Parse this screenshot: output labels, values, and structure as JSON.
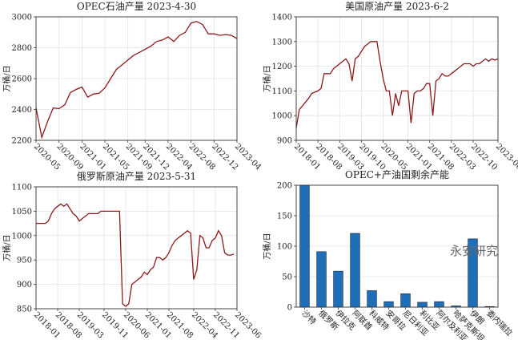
{
  "chart_data": [
    {
      "type": "line",
      "title": "OPEC石油产量 2023-4-30",
      "ylabel": "万桶/日",
      "color": "#8b1a1a",
      "grid": true,
      "x": [
        "2020-05",
        "2020-06",
        "2020-07",
        "2020-08",
        "2020-09",
        "2020-10",
        "2020-11",
        "2020-12",
        "2021-01",
        "2021-02",
        "2021-03",
        "2021-04",
        "2021-05",
        "2021-06",
        "2021-07",
        "2021-08",
        "2021-09",
        "2021-10",
        "2021-11",
        "2021-12",
        "2022-01",
        "2022-02",
        "2022-03",
        "2022-04",
        "2022-05",
        "2022-06",
        "2022-07",
        "2022-08",
        "2022-09",
        "2022-10",
        "2022-11",
        "2022-12",
        "2023-01",
        "2023-02",
        "2023-03",
        "2023-04"
      ],
      "values": [
        2410,
        2220,
        2320,
        2410,
        2405,
        2430,
        2510,
        2530,
        2545,
        2480,
        2500,
        2505,
        2540,
        2600,
        2660,
        2690,
        2720,
        2750,
        2770,
        2790,
        2810,
        2840,
        2850,
        2870,
        2840,
        2880,
        2900,
        2960,
        2970,
        2950,
        2890,
        2890,
        2880,
        2885,
        2880,
        2860
      ],
      "xlim": [
        "2020-05",
        "2023-04"
      ],
      "xticks": [
        "2020-05",
        "2020-09",
        "2021-01",
        "2021-05",
        "2021-09",
        "2021-12",
        "2022-04",
        "2022-08",
        "2022-12",
        "2023-04"
      ],
      "ylim": [
        2200,
        3000
      ],
      "yticks": [
        2200,
        2400,
        2600,
        2800,
        3000
      ]
    },
    {
      "type": "line",
      "title": "美国原油产量 2023-6-2",
      "ylabel": "万桶/日",
      "color": "#8b1a1a",
      "grid": true,
      "x": [
        "2018-01",
        "2018-02",
        "2018-03",
        "2018-04",
        "2018-05",
        "2018-06",
        "2018-07",
        "2018-08",
        "2018-09",
        "2018-10",
        "2018-11",
        "2018-12",
        "2019-01",
        "2019-02",
        "2019-03",
        "2019-04",
        "2019-05",
        "2019-06",
        "2019-07",
        "2019-08",
        "2019-09",
        "2019-10",
        "2019-11",
        "2019-12",
        "2020-01",
        "2020-02",
        "2020-03",
        "2020-04",
        "2020-05",
        "2020-06",
        "2020-07",
        "2020-08",
        "2020-09",
        "2020-10",
        "2020-11",
        "2020-12",
        "2021-01",
        "2021-02",
        "2021-03",
        "2021-04",
        "2021-05",
        "2021-06",
        "2021-07",
        "2021-08",
        "2021-09",
        "2021-10",
        "2021-11",
        "2021-12",
        "2022-01",
        "2022-02",
        "2022-03",
        "2022-04",
        "2022-05",
        "2022-06",
        "2022-07",
        "2022-08",
        "2022-09",
        "2022-10",
        "2022-11",
        "2022-12",
        "2023-01",
        "2023-02",
        "2023-03",
        "2023-04",
        "2023-05",
        "2023-06"
      ],
      "values": [
        950,
        1025,
        1040,
        1055,
        1070,
        1090,
        1095,
        1100,
        1110,
        1170,
        1170,
        1170,
        1190,
        1200,
        1210,
        1220,
        1230,
        1210,
        1140,
        1230,
        1240,
        1260,
        1280,
        1290,
        1300,
        1300,
        1300,
        1220,
        1150,
        1100,
        1100,
        1000,
        1090,
        1040,
        1100,
        1100,
        1100,
        970,
        1090,
        1100,
        1100,
        1110,
        1130,
        1130,
        1000,
        1140,
        1150,
        1170,
        1160,
        1160,
        1170,
        1180,
        1190,
        1200,
        1210,
        1210,
        1210,
        1200,
        1210,
        1210,
        1220,
        1230,
        1220,
        1230,
        1225,
        1230
      ],
      "xlim": [
        "2018-01",
        "2023-06"
      ],
      "xticks": [
        "2018-01",
        "2018-08",
        "2019-03",
        "2019-10",
        "2020-05",
        "2021-01",
        "2021-08",
        "2022-03",
        "2022-10",
        "2023-06"
      ],
      "ylim": [
        900,
        1400
      ],
      "yticks": [
        900,
        1000,
        1100,
        1200,
        1300,
        1400
      ]
    },
    {
      "type": "line",
      "title": "俄罗斯原油产量 2023-5-31",
      "ylabel": "万桶/日",
      "color": "#8b1a1a",
      "grid": true,
      "x": [
        "2018-01",
        "2018-02",
        "2018-03",
        "2018-04",
        "2018-05",
        "2018-06",
        "2018-07",
        "2018-08",
        "2018-09",
        "2018-10",
        "2018-11",
        "2018-12",
        "2019-01",
        "2019-02",
        "2019-03",
        "2019-04",
        "2019-05",
        "2019-06",
        "2019-07",
        "2019-08",
        "2019-09",
        "2019-10",
        "2019-11",
        "2019-12",
        "2020-01",
        "2020-02",
        "2020-03",
        "2020-04",
        "2020-05",
        "2020-06",
        "2020-07",
        "2020-08",
        "2020-09",
        "2020-10",
        "2020-11",
        "2020-12",
        "2021-01",
        "2021-02",
        "2021-03",
        "2021-04",
        "2021-05",
        "2021-06",
        "2021-07",
        "2021-08",
        "2021-09",
        "2021-10",
        "2021-11",
        "2021-12",
        "2022-01",
        "2022-02",
        "2022-03",
        "2022-04",
        "2022-05",
        "2022-06",
        "2022-07",
        "2022-08",
        "2022-09",
        "2022-10",
        "2022-11",
        "2022-12",
        "2023-01",
        "2023-02",
        "2023-03",
        "2023-04",
        "2023-05"
      ],
      "values": [
        1025,
        1025,
        1025,
        1025,
        1030,
        1045,
        1055,
        1060,
        1065,
        1060,
        1065,
        1055,
        1045,
        1040,
        1030,
        1035,
        1040,
        1045,
        1045,
        1045,
        1045,
        1050,
        1050,
        1050,
        1050,
        1050,
        1050,
        1050,
        860,
        855,
        860,
        900,
        905,
        910,
        915,
        925,
        920,
        930,
        935,
        955,
        955,
        950,
        955,
        965,
        980,
        990,
        995,
        1000,
        1005,
        1010,
        1005,
        910,
        930,
        1000,
        995,
        975,
        975,
        990,
        995,
        1010,
        1000,
        965,
        960,
        960,
        962
      ],
      "xlim": [
        "2018-01",
        "2023-06"
      ],
      "xticks": [
        "2018-01",
        "2018-08",
        "2019-03",
        "2019-11",
        "2020-06",
        "2021-01",
        "2021-08",
        "2022-04",
        "2022-11",
        "2023-06"
      ],
      "ylim": [
        850,
        1100
      ],
      "yticks": [
        850,
        900,
        950,
        1000,
        1050,
        1100
      ]
    },
    {
      "type": "bar",
      "title": "OPEC+产油国剩余产能",
      "ylabel": "万桶/日",
      "color": "#1f6fb8",
      "grid": true,
      "annotation": "永安研究",
      "categories": [
        "沙特",
        "俄罗斯",
        "伊拉克",
        "阿联酋",
        "科威特",
        "安哥拉",
        "尼日利亚",
        "利比亚",
        "阿尔及利亚",
        "哈萨克斯坦",
        "伊朗",
        "委内瑞拉"
      ],
      "values": [
        200,
        91,
        59,
        121,
        27,
        9,
        22,
        8,
        9,
        2,
        112,
        1
      ],
      "ylim": [
        0,
        200
      ],
      "yticks": [
        0,
        50,
        100,
        150,
        200
      ]
    }
  ]
}
